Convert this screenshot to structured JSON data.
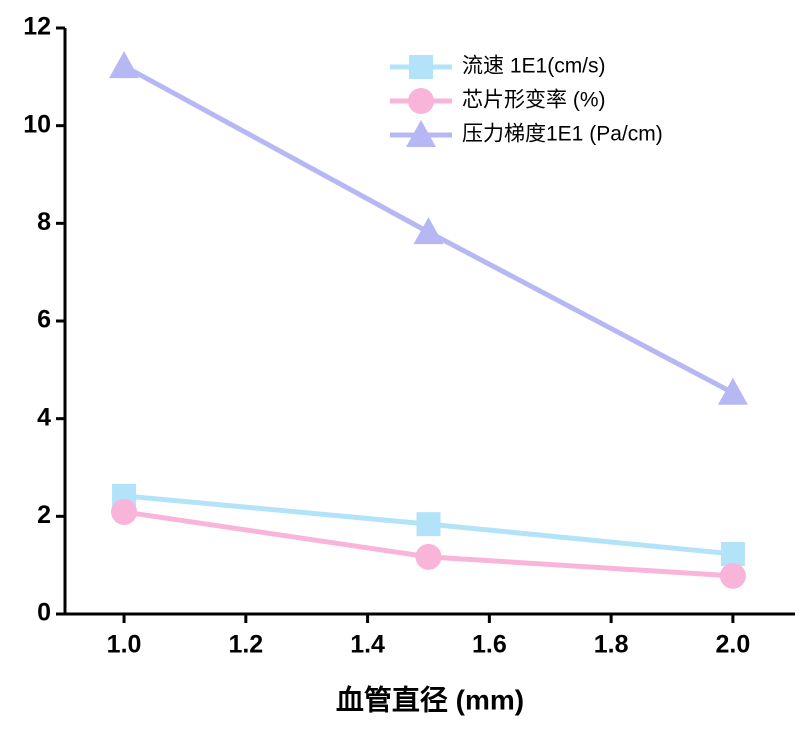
{
  "chart_data": {
    "type": "line",
    "x": [
      1.0,
      1.5,
      2.0
    ],
    "x_label": "血管直径 (mm)",
    "xlim": [
      0.903,
      2.102
    ],
    "xticks": [
      {
        "value": 1.0,
        "label": "1.0"
      },
      {
        "value": 1.2,
        "label": "1.2"
      },
      {
        "value": 1.4,
        "label": "1.4"
      },
      {
        "value": 1.6,
        "label": "1.6"
      },
      {
        "value": 1.8,
        "label": "1.8"
      },
      {
        "value": 2.0,
        "label": "2.0"
      }
    ],
    "ylim": [
      0,
      12
    ],
    "yticks": [
      0,
      2,
      4,
      6,
      8,
      10,
      12
    ],
    "legend": "upper right",
    "series": [
      {
        "name": "流速 1E1(cm/s)",
        "color": "#b3e3f8",
        "marker": "square",
        "values": [
          2.42,
          1.84,
          1.23
        ]
      },
      {
        "name": "芯片形变率 (%)",
        "color": "#f9b4da",
        "marker": "circle",
        "values": [
          2.09,
          1.17,
          0.78
        ]
      },
      {
        "name": "压力梯度1E1 (Pa/cm)",
        "color": "#b6b8f4",
        "marker": "triangle",
        "values": [
          11.22,
          7.82,
          4.53
        ]
      }
    ]
  }
}
